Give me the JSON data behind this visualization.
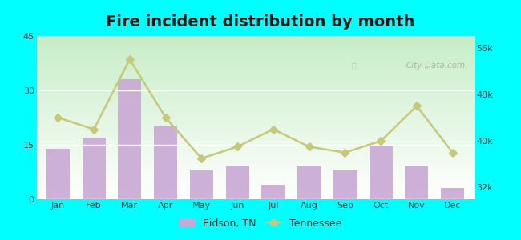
{
  "title": "Fire incident distribution by month",
  "months": [
    "Jan",
    "Feb",
    "Mar",
    "Apr",
    "May",
    "Jun",
    "Jul",
    "Aug",
    "Sep",
    "Oct",
    "Nov",
    "Dec"
  ],
  "eidson_values": [
    14,
    17,
    33,
    20,
    8,
    9,
    4,
    9,
    8,
    15,
    9,
    3
  ],
  "tennessee_values": [
    44000,
    42000,
    54000,
    44000,
    37000,
    39000,
    42000,
    39000,
    38000,
    40000,
    46000,
    38000
  ],
  "bar_color": "#c9a8d4",
  "line_color": "#c8c87a",
  "line_marker": "D",
  "outer_bg": "#00ffff",
  "left_ylim": [
    0,
    45
  ],
  "right_ylim": [
    30000,
    58000
  ],
  "left_yticks": [
    0,
    15,
    30,
    45
  ],
  "right_yticks": [
    32000,
    40000,
    48000,
    56000
  ],
  "title_fontsize": 14,
  "tick_fontsize": 8,
  "legend_fontsize": 9,
  "watermark_text": "City-Data.com"
}
